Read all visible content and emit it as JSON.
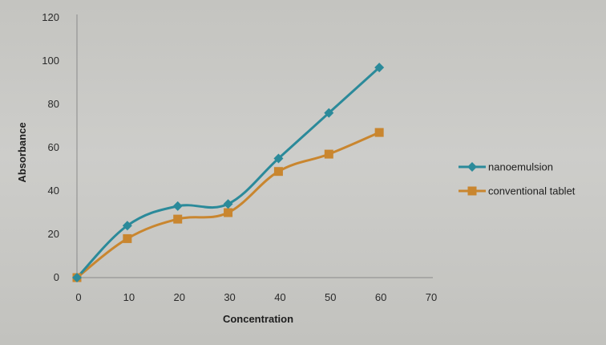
{
  "chart_data": {
    "type": "line",
    "title": "",
    "xlabel": "Concentration",
    "ylabel": "Absorbance",
    "x_ticks": [
      "0",
      "10",
      "20",
      "30",
      "40",
      "50",
      "60",
      "70"
    ],
    "y_ticks": [
      "0",
      "20",
      "40",
      "60",
      "80",
      "100",
      "120"
    ],
    "xlim": [
      0,
      70
    ],
    "ylim": [
      0,
      120
    ],
    "grid": false,
    "legend_position": "right",
    "x": [
      0,
      10,
      20,
      30,
      40,
      50,
      60
    ],
    "series": [
      {
        "name": "nanoemulsion",
        "values": [
          0,
          24,
          33,
          34,
          55,
          76,
          97
        ],
        "color": "#2b8a9a",
        "marker": "diamond"
      },
      {
        "name": "conventional tablet",
        "values": [
          0,
          18,
          27,
          30,
          49,
          57,
          67
        ],
        "color": "#c9862f",
        "marker": "square"
      }
    ]
  }
}
